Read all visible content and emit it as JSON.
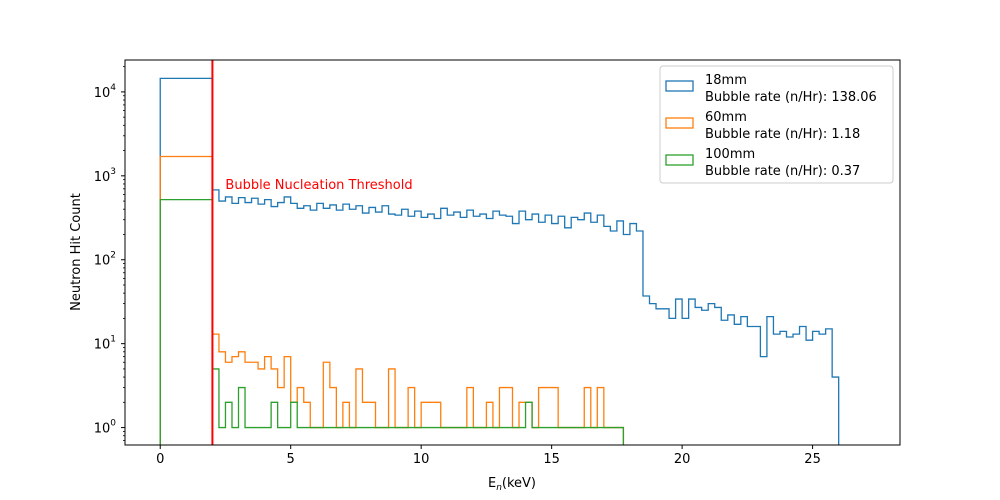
{
  "chart_data": {
    "type": "histogram",
    "xlabel_main": "E",
    "xlabel_sub": "n",
    "xlabel_unit": "(keV)",
    "ylabel": "Neutron Hit Count",
    "xlim": [
      -1.35,
      28.35
    ],
    "ylim": [
      0.62,
      24000
    ],
    "yscale": "log",
    "grid": false,
    "legend_position": "top-right",
    "x_ticks": [
      0,
      5,
      10,
      15,
      20,
      25
    ],
    "y_ticks": [
      {
        "value": 1,
        "base": "10",
        "exp": "0"
      },
      {
        "value": 10,
        "base": "10",
        "exp": "1"
      },
      {
        "value": 100,
        "base": "10",
        "exp": "2"
      },
      {
        "value": 1000,
        "base": "10",
        "exp": "3"
      },
      {
        "value": 10000,
        "base": "10",
        "exp": "4"
      }
    ],
    "threshold": {
      "x": 2.0,
      "label": "Bubble Nucleation Threshold",
      "color": "#ff0000"
    },
    "bins": {
      "first_bin": [
        0,
        2
      ],
      "rest_start": 2,
      "rest_width": 0.25
    },
    "series": [
      {
        "name": "18mm",
        "rate_label": "Bubble rate (n/Hr): 138.06",
        "color": "#1f77b4",
        "end": 27.0,
        "first_bin_value": 14500,
        "values": [
          680,
          500,
          560,
          470,
          550,
          480,
          540,
          460,
          520,
          430,
          480,
          560,
          470,
          410,
          440,
          390,
          470,
          410,
          450,
          390,
          460,
          400,
          440,
          360,
          420,
          370,
          440,
          350,
          340,
          400,
          330,
          380,
          320,
          350,
          310,
          410,
          340,
          370,
          320,
          390,
          330,
          350,
          310,
          380,
          340,
          330,
          270,
          380,
          300,
          350,
          280,
          340,
          270,
          330,
          240,
          320,
          300,
          360,
          280,
          340,
          250,
          220,
          290,
          200,
          270,
          220,
          37,
          30,
          26,
          26,
          20,
          34,
          20,
          34,
          27,
          25,
          30,
          27,
          19,
          22,
          17,
          21,
          16,
          16,
          7,
          21,
          13,
          14,
          12,
          13,
          16,
          11,
          14,
          13,
          15,
          4
        ]
      },
      {
        "name": "60mm",
        "rate_label": "Bubble rate (n/Hr): 1.18",
        "color": "#ff7f0e",
        "end": 17.75,
        "first_bin_value": 1700,
        "values": [
          13,
          8,
          6,
          7,
          8,
          6,
          6,
          5,
          7,
          5,
          3,
          7,
          2,
          3,
          2,
          1,
          1,
          6,
          3,
          1,
          2,
          1,
          5,
          2,
          2,
          1,
          1,
          5,
          1,
          1,
          3,
          1,
          2,
          2,
          2,
          1,
          1,
          1,
          1,
          3,
          1,
          1,
          2,
          1,
          3,
          3,
          1,
          2,
          2,
          1,
          3,
          3,
          3,
          1,
          1,
          1,
          1,
          3,
          1,
          3,
          1,
          1,
          1,
          1,
          3,
          1,
          1,
          2,
          2,
          1,
          1,
          2,
          1,
          1,
          1,
          1,
          1,
          1,
          1,
          1,
          1,
          1,
          1,
          1,
          1,
          1,
          1,
          1,
          1,
          1,
          1,
          1,
          1,
          1,
          1,
          1
        ]
      },
      {
        "name": "100mm",
        "rate_label": "Bubble rate (n/Hr): 0.37",
        "color": "#2ca02c",
        "end": 17.75,
        "first_bin_value": 520,
        "values": [
          5,
          1,
          2,
          1,
          3,
          1,
          1,
          1,
          1,
          2,
          1,
          1,
          2,
          1,
          1,
          1,
          1,
          1,
          1,
          1,
          1,
          1,
          1,
          1,
          1,
          1,
          1,
          1,
          1,
          1,
          1,
          1,
          1,
          1,
          1,
          1,
          1,
          1,
          1,
          1,
          1,
          1,
          1,
          1,
          1,
          1,
          1,
          1,
          2,
          1,
          1,
          1,
          1,
          1,
          1,
          1,
          1,
          1,
          1,
          1,
          1,
          1,
          1,
          1,
          1,
          1,
          1,
          1,
          1,
          1,
          1,
          1,
          1,
          1,
          1,
          1,
          1,
          1,
          1,
          1,
          1,
          1,
          1,
          1,
          1,
          1,
          1,
          1,
          1,
          1,
          1,
          1,
          1,
          1,
          1,
          1
        ]
      }
    ]
  }
}
